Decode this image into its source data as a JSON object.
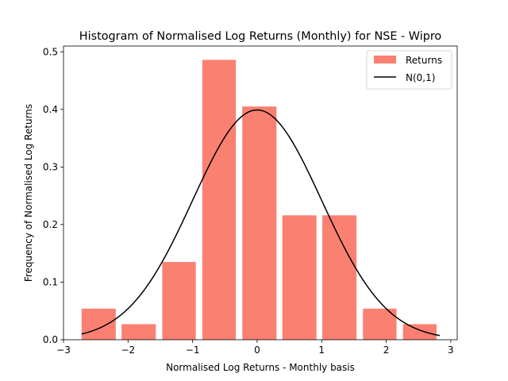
{
  "chart_data": {
    "type": "bar",
    "title": "Histogram of Normalised Log Returns (Monthly) for NSE - Wipro",
    "xlabel": "Normalised Log Returns - Monthly basis",
    "ylabel": "Frequency of Normalised Log Returns",
    "xlim": [
      -3.0,
      3.1
    ],
    "ylim": [
      0.0,
      0.51
    ],
    "xticks": [
      -3,
      -2,
      -1,
      0,
      1,
      2,
      3
    ],
    "xtick_labels": [
      "−3",
      "−2",
      "−1",
      "0",
      "1",
      "2",
      "3"
    ],
    "yticks": [
      0.0,
      0.1,
      0.2,
      0.3,
      0.4,
      0.5
    ],
    "ytick_labels": [
      "0.0",
      "0.1",
      "0.2",
      "0.3",
      "0.4",
      "0.5"
    ],
    "grid": false,
    "legend_position": "top-right",
    "bars": {
      "name": "Returns",
      "color": "#fa8072",
      "x_left": [
        -2.72,
        -2.1,
        -1.47,
        -0.85,
        -0.23,
        0.39,
        1.01,
        1.64,
        2.26
      ],
      "x_right": [
        -2.19,
        -1.57,
        -0.95,
        -0.33,
        0.3,
        0.92,
        1.54,
        2.16,
        2.78
      ],
      "values": [
        0.054,
        0.027,
        0.135,
        0.486,
        0.405,
        0.216,
        0.216,
        0.054,
        0.027
      ]
    },
    "curve": {
      "name": "N(0,1)",
      "color": "#000000",
      "type": "line",
      "x_range": [
        -2.72,
        2.83
      ]
    }
  }
}
